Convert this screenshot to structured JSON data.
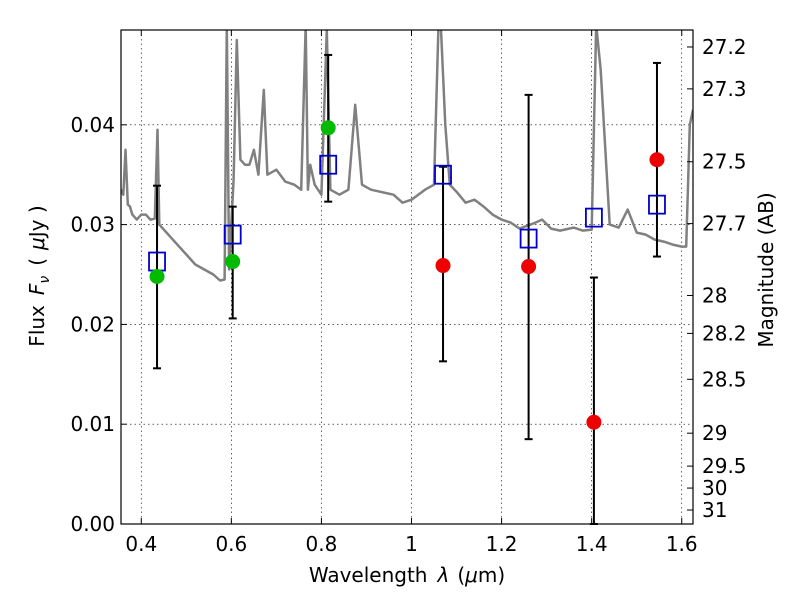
{
  "chart_data": {
    "type": "scatter",
    "xlabel": "Wavelength",
    "xlabel_symbol": "λ",
    "xlabel_unit_open": "(",
    "xlabel_unit_mu": "μ",
    "xlabel_unit_rest": "m)",
    "ylabel": "Flux",
    "ylabel_symbol": "F",
    "ylabel_subscript": "ν",
    "ylabel_unit_open": "(",
    "ylabel_unit_mu": "μ",
    "ylabel_unit_rest": "Jy )",
    "y2label": "Magnitude (AB)",
    "xlim": [
      0.355,
      1.625
    ],
    "ylim": [
      0.0,
      0.0495
    ],
    "grid": true,
    "x_ticks": [
      {
        "value": 0.4,
        "label": "0.4"
      },
      {
        "value": 0.6,
        "label": "0.6"
      },
      {
        "value": 0.8,
        "label": "0.8"
      },
      {
        "value": 1.0,
        "label": "1"
      },
      {
        "value": 1.2,
        "label": "1.2"
      },
      {
        "value": 1.4,
        "label": "1.4"
      },
      {
        "value": 1.6,
        "label": "1.6"
      }
    ],
    "y_ticks": [
      {
        "value": 0.0,
        "label": "0.00"
      },
      {
        "value": 0.01,
        "label": "0.01"
      },
      {
        "value": 0.02,
        "label": "0.02"
      },
      {
        "value": 0.03,
        "label": "0.03"
      },
      {
        "value": 0.04,
        "label": "0.04"
      }
    ],
    "y2_ticks": [
      {
        "label": "27.2",
        "flux": 0.0478
      },
      {
        "label": "27.3",
        "flux": 0.0436
      },
      {
        "label": "27.5",
        "flux": 0.0363
      },
      {
        "label": "27.7",
        "flux": 0.0301
      },
      {
        "label": "28",
        "flux": 0.0229
      },
      {
        "label": "28.2",
        "flux": 0.0191
      },
      {
        "label": "28.5",
        "flux": 0.0145
      },
      {
        "label": "29",
        "flux": 0.0091
      },
      {
        "label": "29.5",
        "flux": 0.0058
      },
      {
        "label": "30",
        "flux": 0.0036
      },
      {
        "label": "31",
        "flux": 0.0014
      }
    ],
    "colors": {
      "spectrum": "#808080",
      "green_points": "#00bb00",
      "red_points": "#ee0000",
      "model_squares": "#0000cc",
      "errorbar": "#000000"
    },
    "spectrum": {
      "style": "line",
      "x": [
        0.355,
        0.36,
        0.365,
        0.37,
        0.375,
        0.38,
        0.39,
        0.4,
        0.41,
        0.42,
        0.43,
        0.436,
        0.44,
        0.45,
        0.46,
        0.48,
        0.5,
        0.52,
        0.54,
        0.56,
        0.575,
        0.585,
        0.59,
        0.595,
        0.6,
        0.605,
        0.612,
        0.62,
        0.63,
        0.64,
        0.65,
        0.66,
        0.672,
        0.68,
        0.7,
        0.72,
        0.74,
        0.755,
        0.765,
        0.77,
        0.775,
        0.785,
        0.8,
        0.812,
        0.82,
        0.84,
        0.86,
        0.875,
        0.89,
        0.91,
        0.93,
        0.96,
        0.98,
        1.0,
        1.03,
        1.05,
        1.06,
        1.065,
        1.075,
        1.085,
        1.1,
        1.12,
        1.14,
        1.16,
        1.18,
        1.2,
        1.22,
        1.24,
        1.27,
        1.29,
        1.31,
        1.33,
        1.36,
        1.38,
        1.4,
        1.41,
        1.42,
        1.44,
        1.46,
        1.48,
        1.5,
        1.52,
        1.54,
        1.56,
        1.58,
        1.6,
        1.61,
        1.618,
        1.625
      ],
      "y": [
        0.0335,
        0.033,
        0.0375,
        0.032,
        0.0318,
        0.031,
        0.0305,
        0.031,
        0.031,
        0.0305,
        0.0306,
        0.0395,
        0.03,
        0.0295,
        0.029,
        0.028,
        0.027,
        0.026,
        0.0255,
        0.025,
        0.0244,
        0.0245,
        0.05,
        0.0255,
        0.03,
        0.0345,
        0.0485,
        0.0365,
        0.036,
        0.036,
        0.0375,
        0.035,
        0.0435,
        0.035,
        0.0355,
        0.0343,
        0.034,
        0.0335,
        0.05,
        0.0335,
        0.036,
        0.034,
        0.033,
        0.0495,
        0.0335,
        0.033,
        0.0335,
        0.042,
        0.034,
        0.0335,
        0.0333,
        0.033,
        0.0322,
        0.0325,
        0.0335,
        0.034,
        0.05,
        0.05,
        0.04,
        0.034,
        0.0333,
        0.0322,
        0.0325,
        0.0318,
        0.031,
        0.0305,
        0.0302,
        0.0296,
        0.0301,
        0.0305,
        0.0296,
        0.0294,
        0.0297,
        0.0294,
        0.0295,
        0.05,
        0.0455,
        0.03,
        0.0297,
        0.0315,
        0.0292,
        0.029,
        0.0285,
        0.0283,
        0.028,
        0.0278,
        0.0278,
        0.04,
        0.0415
      ]
    },
    "series": [
      {
        "style": "green-dots",
        "points": [
          {
            "x": 0.435,
            "y": 0.0248
          },
          {
            "x": 0.603,
            "y": 0.0263
          },
          {
            "x": 0.815,
            "y": 0.0397
          }
        ]
      },
      {
        "style": "red-dots",
        "points": [
          {
            "x": 1.07,
            "y": 0.0259
          },
          {
            "x": 1.26,
            "y": 0.0258
          },
          {
            "x": 1.405,
            "y": 0.0102
          },
          {
            "x": 1.545,
            "y": 0.0365
          }
        ]
      },
      {
        "style": "open-squares",
        "points": [
          {
            "x": 0.435,
            "y": 0.0263
          },
          {
            "x": 0.603,
            "y": 0.029
          },
          {
            "x": 0.815,
            "y": 0.036
          },
          {
            "x": 1.07,
            "y": 0.035
          },
          {
            "x": 1.26,
            "y": 0.0286
          },
          {
            "x": 1.405,
            "y": 0.0307
          },
          {
            "x": 1.545,
            "y": 0.032
          }
        ]
      }
    ],
    "errorbars": [
      {
        "x": 0.435,
        "low": 0.0156,
        "high": 0.0339
      },
      {
        "x": 0.603,
        "low": 0.0206,
        "high": 0.0318
      },
      {
        "x": 0.815,
        "low": 0.0323,
        "high": 0.047
      },
      {
        "x": 1.07,
        "low": 0.0163,
        "high": 0.0358
      },
      {
        "x": 1.26,
        "low": 0.0085,
        "high": 0.043
      },
      {
        "x": 1.405,
        "low": 0.0,
        "high": 0.0247
      },
      {
        "x": 1.545,
        "low": 0.0268,
        "high": 0.0462
      }
    ]
  }
}
